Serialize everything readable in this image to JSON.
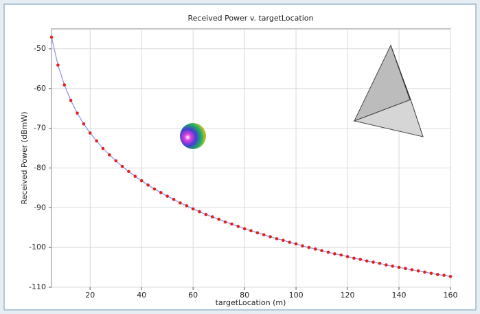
{
  "chart_data": {
    "type": "line",
    "title": "Received Power v. targetLocation",
    "x_label": "targetLocation (m)",
    "y_label": "Received Power (dBmW)",
    "x": [
      5,
      7.5,
      10,
      12.5,
      15,
      17.5,
      20,
      22.5,
      25,
      27.5,
      30,
      32.5,
      35,
      37.5,
      40,
      42.5,
      45,
      47.5,
      50,
      52.5,
      55,
      57.5,
      60,
      62.5,
      65,
      67.5,
      70,
      72.5,
      75,
      77.5,
      80,
      82.5,
      85,
      87.5,
      90,
      92.5,
      95,
      97.5,
      100,
      102.5,
      105,
      107.5,
      110,
      112.5,
      115,
      117.5,
      120,
      122.5,
      125,
      127.5,
      130,
      132.5,
      135,
      137.5,
      140,
      142.5,
      145,
      147.5,
      150,
      152.5,
      155,
      157.5,
      160
    ],
    "series": [
      {
        "color": "#e0201c",
        "line_color": "#8a8cf0",
        "values": [
          -47.1,
          -54.1,
          -59.1,
          -63.0,
          -66.2,
          -68.9,
          -71.2,
          -73.2,
          -75.1,
          -76.7,
          -78.2,
          -79.6,
          -80.9,
          -82.1,
          -83.2,
          -84.3,
          -85.3,
          -86.2,
          -87.1,
          -87.9,
          -88.8,
          -89.5,
          -90.3,
          -91.0,
          -91.7,
          -92.3,
          -92.9,
          -93.6,
          -94.1,
          -94.7,
          -95.3,
          -95.8,
          -96.3,
          -96.8,
          -97.3,
          -97.8,
          -98.2,
          -98.7,
          -99.1,
          -99.6,
          -100.0,
          -100.4,
          -100.8,
          -101.2,
          -101.6,
          -101.9,
          -102.3,
          -102.7,
          -103.0,
          -103.4,
          -103.7,
          -104.0,
          -104.4,
          -104.7,
          -105.0,
          -105.3,
          -105.6,
          -105.9,
          -106.2,
          -106.5,
          -106.8,
          -107.0,
          -107.3
        ]
      }
    ],
    "xlim": [
      5,
      160
    ],
    "xticks": [
      20,
      40,
      60,
      80,
      100,
      120,
      140,
      160
    ],
    "ylim": [
      -110,
      -45
    ],
    "yticks": [
      -110,
      -100,
      -90,
      -80,
      -70,
      -60,
      -50
    ],
    "grid": true
  }
}
